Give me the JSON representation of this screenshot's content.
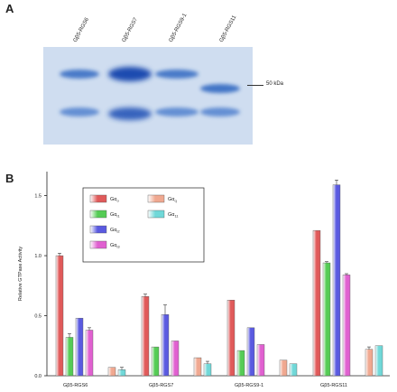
{
  "panels": {
    "a": "A",
    "b": "B"
  },
  "gel": {
    "lanes": [
      "Gβ5-RGS6",
      "Gβ5-RGS7",
      "Gβ5-RGS9-1",
      "Gβ5-RGS11"
    ],
    "marker_label": "50 kDa"
  },
  "chart_data": {
    "type": "bar",
    "ylabel": "Relative GTPase Activity",
    "ylim": [
      0,
      1.7
    ],
    "yticks": [
      "0.0",
      "0.5",
      "1.0",
      "1.5"
    ],
    "categories": [
      "Gβ5-RGS6",
      "Gβ5-RGS7",
      "Gβ5-RGS9-1",
      "Gβ5-RGS11"
    ],
    "series": [
      {
        "name": "Gαo",
        "color": "#e05a5a",
        "values": [
          1.0,
          0.66,
          0.63,
          1.21
        ],
        "errors": [
          0.02,
          0.02,
          0.0,
          0.0
        ]
      },
      {
        "name": "Gαi1",
        "color": "#55cc55",
        "values": [
          0.32,
          0.24,
          0.21,
          0.94
        ],
        "errors": [
          0.03,
          0.0,
          0.0,
          0.01
        ]
      },
      {
        "name": "Gαi2",
        "color": "#5a5ae0",
        "values": [
          0.48,
          0.51,
          0.4,
          1.59
        ],
        "errors": [
          0.0,
          0.08,
          0.0,
          0.04
        ]
      },
      {
        "name": "Gαi3",
        "color": "#e060d0",
        "values": [
          0.38,
          0.29,
          0.26,
          0.84
        ],
        "errors": [
          0.02,
          0.0,
          0.0,
          0.01
        ]
      },
      {
        "name": "Gαq",
        "color": "#f0a890",
        "values": [
          0.07,
          0.15,
          0.13,
          0.22
        ],
        "errors": [
          0.0,
          0.0,
          0.0,
          0.02
        ]
      },
      {
        "name": "Gα11",
        "color": "#70d8d8",
        "values": [
          0.05,
          0.1,
          0.1,
          0.25
        ],
        "errors": [
          0.02,
          0.02,
          0.0,
          0.0
        ]
      }
    ],
    "legend": {
      "placement": "top-left",
      "entries": [
        {
          "base": "Gα",
          "sub": "o"
        },
        {
          "base": "Gα",
          "sub": "i1"
        },
        {
          "base": "Gα",
          "sub": "i2"
        },
        {
          "base": "Gα",
          "sub": "i3"
        },
        {
          "base": "Gα",
          "sub": "q"
        },
        {
          "base": "Gα",
          "sub": "11"
        }
      ]
    }
  }
}
